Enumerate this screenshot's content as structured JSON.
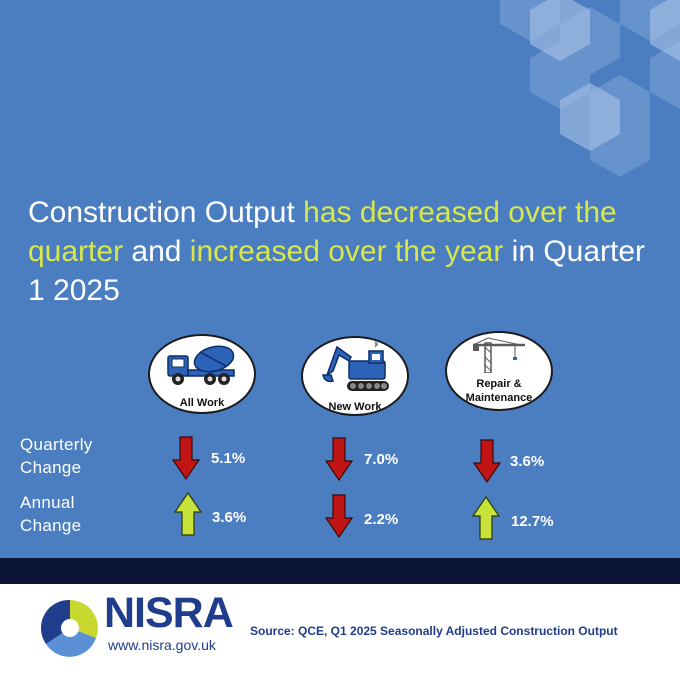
{
  "headline": {
    "part1": "Construction Output ",
    "part2": "has decreased over the quarter",
    "part3": " and ",
    "part4": "increased over the year",
    "part5": " in Quarter 1 2025"
  },
  "colors": {
    "background": "#4b7dc1",
    "highlight": "#d8e74a",
    "down": "#c11414",
    "up": "#c8e23a",
    "band": "#0c1438",
    "brand": "#1f3d8c"
  },
  "categories": [
    {
      "label": "All Work",
      "icon": "concrete-mixer-truck-icon",
      "quarterly": {
        "value": "5.1%",
        "direction": "down"
      },
      "annual": {
        "value": "3.6%",
        "direction": "up"
      }
    },
    {
      "label": "New Work",
      "icon": "excavator-icon",
      "quarterly": {
        "value": "7.0%",
        "direction": "down"
      },
      "annual": {
        "value": "2.2%",
        "direction": "down"
      }
    },
    {
      "label": "Repair & Maintenance",
      "icon": "tower-crane-icon",
      "quarterly": {
        "value": "3.6%",
        "direction": "down"
      },
      "annual": {
        "value": "12.7%",
        "direction": "up"
      }
    }
  ],
  "rows": {
    "quarterly_label": "Quarterly Change",
    "annual_label": "Annual Change"
  },
  "footer": {
    "brand": "NISRA",
    "url": "www.nisra.gov.uk",
    "source": "Source: QCE, Q1 2025 Seasonally Adjusted Construction Output"
  }
}
